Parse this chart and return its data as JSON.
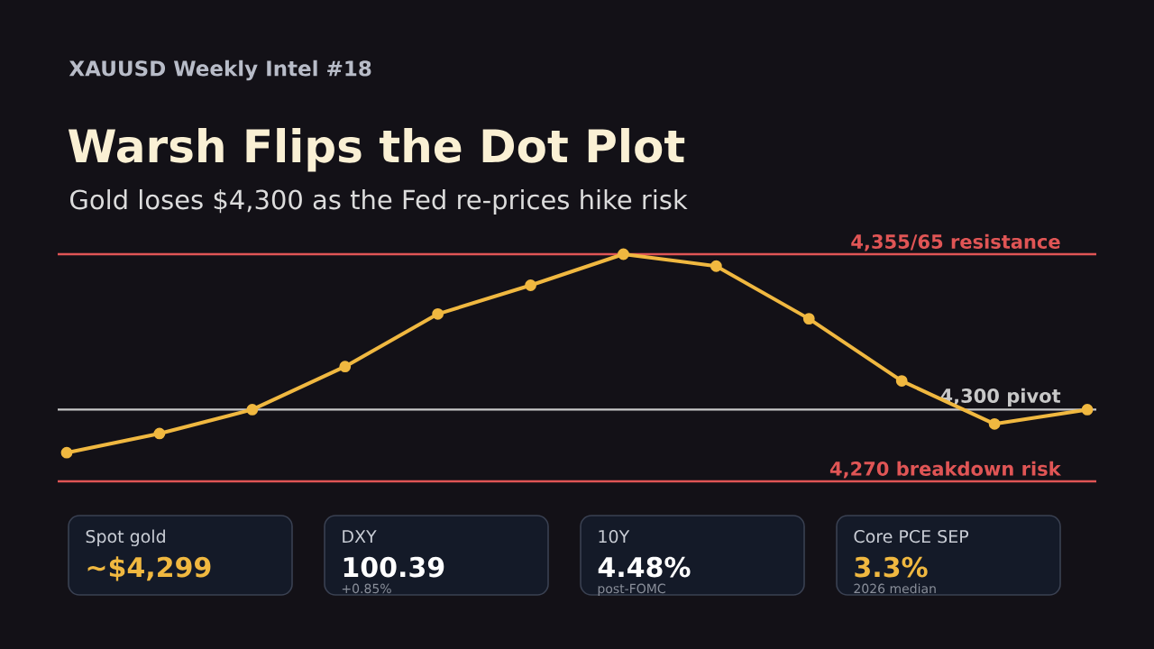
{
  "chart_data": [
    {
      "type": "line",
      "title": "Warsh Flips the Dot Plot",
      "subtitle": "Gold loses $4,300 as the Fed re-prices hike risk",
      "annotations": [
        "XAUUSD Weekly Intel #18"
      ],
      "categories": [
        null,
        null,
        null,
        null,
        null,
        null,
        null,
        null,
        null,
        null,
        null,
        null
      ],
      "series": [
        {
          "color": "#f0b840",
          "values": [
            4282,
            4290,
            4300,
            4318,
            4340,
            4352,
            4365,
            4360,
            4338,
            4312,
            4294,
            4300
          ]
        }
      ],
      "ylim": [
        4270,
        4365
      ],
      "yticks": [
        {
          "value": 4270,
          "label": "4,270 breakdown risk"
        },
        {
          "value": 4300,
          "label": "4,300 pivot"
        },
        {
          "value": 4365,
          "label": "4,355/65 resistance"
        }
      ],
      "tick_labels": "y",
      "marker": "circle",
      "line_style": "solid",
      "ref_lines": [
        {
          "axis": "y",
          "value": 4365,
          "color": "#e05555"
        },
        {
          "axis": "y",
          "value": 4300,
          "color": "#c8c8c8"
        },
        {
          "axis": "y",
          "value": 4270,
          "color": "#e05555"
        }
      ]
    },
    {
      "type": "other",
      "title": "Spot gold",
      "subtitle": "~$4,299",
      "color": "#f0b840"
    },
    {
      "type": "other",
      "title": "DXY",
      "subtitle": "100.39",
      "color": "#ffffff",
      "annotations": [
        "+0.85%"
      ]
    },
    {
      "type": "other",
      "title": "10Y",
      "subtitle": "4.48%",
      "color": "#ffffff",
      "annotations": [
        "post-FOMC"
      ]
    },
    {
      "type": "other",
      "title": "Core PCE SEP",
      "subtitle": "3.3%",
      "color": "#f0b840",
      "annotations": [
        "2026 median"
      ]
    }
  ]
}
